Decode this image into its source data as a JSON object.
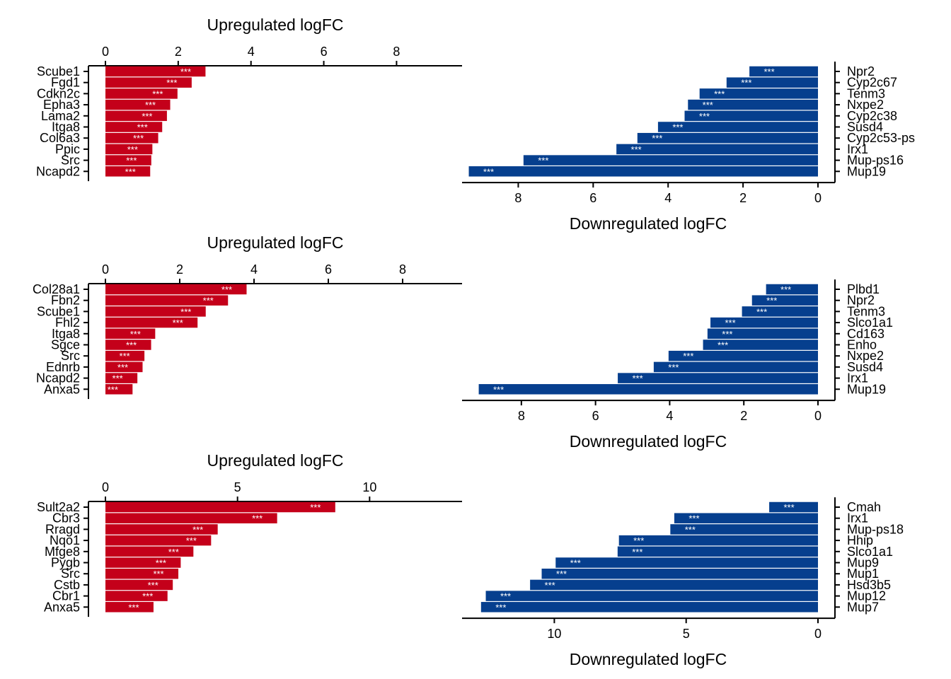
{
  "colors": {
    "up": "#C4001A",
    "down": "#063F8E"
  },
  "chart_data": [
    {
      "type": "bar",
      "orientation": "horizontal",
      "direction": "up",
      "xlabel": "Upregulated logFC",
      "xlim": [
        0,
        9.8
      ],
      "xticks": [
        0,
        2,
        4,
        6,
        8
      ],
      "categories": [
        "Scube1",
        "Fgd1",
        "Cdkn2c",
        "Epha3",
        "Lama2",
        "Itga8",
        "Col6a3",
        "Ppic",
        "Src",
        "Ncapd2"
      ],
      "values": [
        2.75,
        2.37,
        1.98,
        1.78,
        1.69,
        1.56,
        1.45,
        1.29,
        1.26,
        1.23
      ],
      "labels": [
        "***",
        "***",
        "***",
        "***",
        "***",
        "***",
        "***",
        "***",
        "***",
        "***"
      ]
    },
    {
      "type": "bar",
      "orientation": "horizontal",
      "direction": "down",
      "xlabel": "Downregulated logFC",
      "xlim": [
        9.5,
        0
      ],
      "xticks": [
        8,
        6,
        4,
        2,
        0
      ],
      "categories": [
        "Npr2",
        "Cyp2c67",
        "Tenm3",
        "Nxpe2",
        "Cyp2c38",
        "Susd4",
        "Cyp2c53-ps",
        "Irx1",
        "Mup-ps16",
        "Mup19"
      ],
      "values": [
        1.83,
        2.44,
        3.16,
        3.47,
        3.56,
        4.27,
        4.82,
        5.38,
        7.86,
        9.32
      ],
      "labels": [
        "***",
        "***",
        "***",
        "***",
        "***",
        "***",
        "***",
        "***",
        "***",
        "***"
      ]
    },
    {
      "type": "bar",
      "orientation": "horizontal",
      "direction": "up",
      "xlabel": "Upregulated logFC",
      "xlim": [
        0,
        9.6
      ],
      "xticks": [
        0,
        2,
        4,
        6,
        8
      ],
      "categories": [
        "Col28a1",
        "Fbn2",
        "Scube1",
        "Fhl2",
        "Itga8",
        "Sgce",
        "Src",
        "Ednrb",
        "Ncapd2",
        "Anxa5"
      ],
      "values": [
        3.8,
        3.3,
        2.7,
        2.48,
        1.34,
        1.23,
        1.05,
        1.0,
        0.86,
        0.73
      ],
      "labels": [
        "***",
        "***",
        "***",
        "***",
        "***",
        "***",
        "***",
        "***",
        "***",
        "***"
      ]
    },
    {
      "type": "bar",
      "orientation": "horizontal",
      "direction": "down",
      "xlabel": "Downregulated logFC",
      "xlim": [
        9.6,
        0
      ],
      "xticks": [
        8,
        6,
        4,
        2,
        0
      ],
      "categories": [
        "Plbd1",
        "Npr2",
        "Tenm3",
        "Slco1a1",
        "Cd163",
        "Enho",
        "Nxpe2",
        "Susd4",
        "Irx1",
        "Mup19"
      ],
      "values": [
        1.4,
        1.78,
        2.05,
        2.9,
        2.98,
        3.1,
        4.03,
        4.43,
        5.4,
        9.15
      ],
      "labels": [
        "***",
        "***",
        "***",
        "***",
        "***",
        "***",
        "***",
        "***",
        "***",
        "***"
      ]
    },
    {
      "type": "bar",
      "orientation": "horizontal",
      "direction": "up",
      "xlabel": "Upregulated logFC",
      "xlim": [
        0,
        13.5
      ],
      "xticks": [
        0,
        5,
        10
      ],
      "categories": [
        "Sult2a2",
        "Cbr3",
        "Rragd",
        "Nqo1",
        "Mfge8",
        "Pygb",
        "Src",
        "Cstb",
        "Cbr1",
        "Anxa5"
      ],
      "values": [
        8.7,
        6.5,
        4.25,
        4.0,
        3.33,
        2.85,
        2.76,
        2.55,
        2.35,
        1.82
      ],
      "labels": [
        "***",
        "***",
        "***",
        "***",
        "***",
        "***",
        "***",
        "***",
        "***",
        "***"
      ]
    },
    {
      "type": "bar",
      "orientation": "horizontal",
      "direction": "down",
      "xlabel": "Downregulated logFC",
      "xlim": [
        13.5,
        0
      ],
      "xticks": [
        10,
        5,
        0
      ],
      "categories": [
        "Cmah",
        "Irx1",
        "Mup-ps18",
        "Hhip",
        "Slco1a1",
        "Mup9",
        "Mup1",
        "Hsd3b5",
        "Mup12",
        "Mup7"
      ],
      "values": [
        1.85,
        5.45,
        5.6,
        7.55,
        7.6,
        9.95,
        10.48,
        10.92,
        12.6,
        12.78
      ],
      "labels": [
        "***",
        "***",
        "***",
        "***",
        "***",
        "***",
        "***",
        "***",
        "***",
        "***"
      ]
    }
  ]
}
